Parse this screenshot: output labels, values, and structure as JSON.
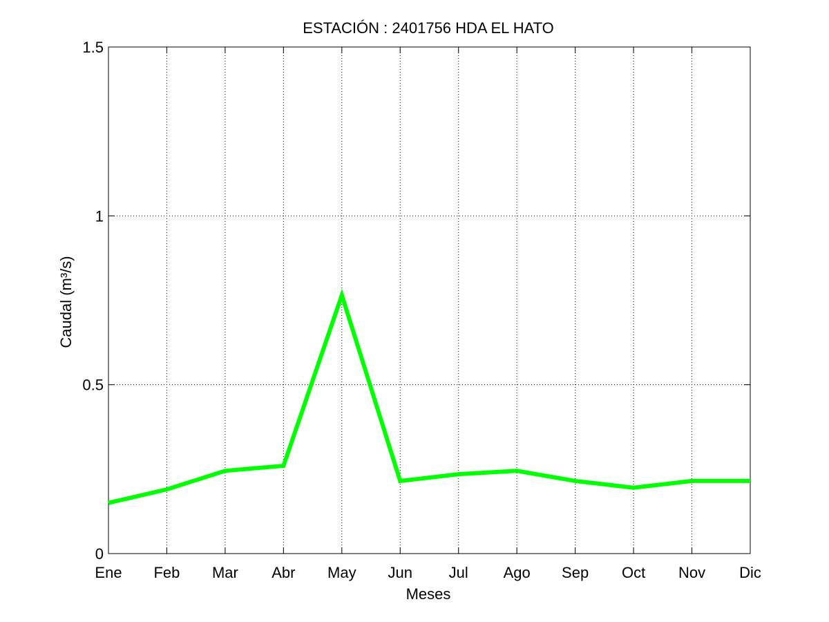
{
  "chart_data": {
    "type": "line",
    "title": "ESTACIÓN :  2401756  HDA EL HATO",
    "xlabel": "Meses",
    "ylabel": "Caudal (m³/s)",
    "categories": [
      "Ene",
      "Feb",
      "Mar",
      "Abr",
      "May",
      "Jun",
      "Jul",
      "Ago",
      "Sep",
      "Oct",
      "Nov",
      "Dic"
    ],
    "series": [
      {
        "values": [
          0.15,
          0.19,
          0.245,
          0.26,
          0.765,
          0.215,
          0.235,
          0.245,
          0.215,
          0.195,
          0.215,
          0.215
        ],
        "color": "#00ff00"
      }
    ],
    "ylim": [
      0,
      1.5
    ],
    "yticks": [
      0,
      0.5,
      1,
      1.5
    ],
    "ytick_labels": [
      "0",
      "0.5",
      "1",
      "1.5"
    ],
    "grid": true,
    "grid_style": "dotted"
  }
}
